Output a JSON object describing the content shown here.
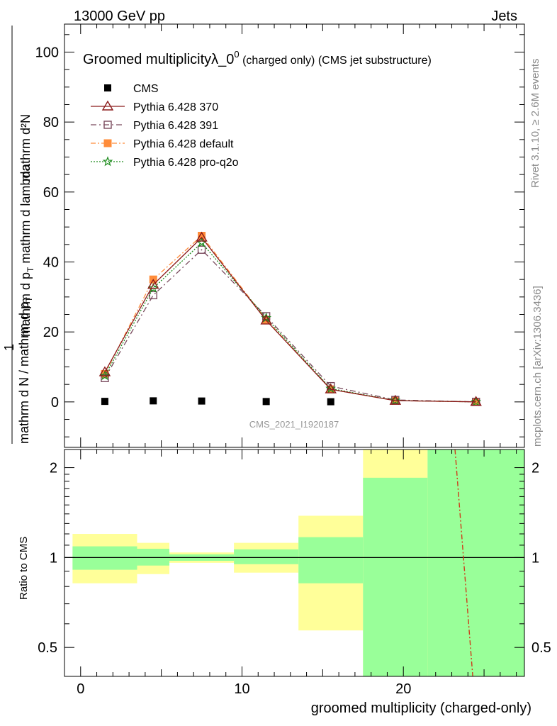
{
  "header": {
    "energy": "13000 GeV pp",
    "category": "Jets"
  },
  "side_labels": {
    "rivet": "Rivet 3.1.10, ≥ 2.6M events",
    "mcplots": "mcplots.cern.ch [arXiv:1306.3436]"
  },
  "chart_data": [
    {
      "type": "line",
      "title": "Groomed multiplicityλ_0",
      "title_sup": "0",
      "title_suffix": " (charged only) (CMS jet substructure)",
      "watermark": "CMS_2021_I1920187",
      "ylabel_numer": "mathrm d²N",
      "ylabel_line1": "1",
      "ylabel_denom": "mathrm d N / mathrm d p",
      "ylabel_denom_sub": "T",
      "ylabel_tail": "mathrm d p",
      "ylabel_tail_sub": "T",
      "ylabel_tail2": " mathrm d lambda",
      "ylim": [
        -13,
        108
      ],
      "yticks": [
        0,
        20,
        40,
        60,
        80,
        100
      ],
      "x": [
        1.5,
        4.5,
        7.5,
        11.5,
        15.5,
        19.5,
        24.5
      ],
      "xlim": [
        -1,
        27.5
      ],
      "legend_position": "top-left",
      "series": [
        {
          "name": "CMS",
          "style": "data",
          "color": "#000000",
          "points": [
            [
              1.5,
              0.15
            ],
            [
              4.5,
              0.3
            ],
            [
              7.5,
              0.25
            ],
            [
              11.5,
              0.1
            ],
            [
              15.5,
              0.05
            ]
          ]
        },
        {
          "name": "Pythia 6.428 370",
          "style": "solid",
          "color": "#8b1a1a",
          "marker": "triangle",
          "points": [
            [
              1.5,
              8.5
            ],
            [
              4.5,
              33.5
            ],
            [
              7.5,
              47.0
            ],
            [
              11.5,
              23.3
            ],
            [
              15.5,
              3.6
            ],
            [
              19.5,
              0.35
            ],
            [
              24.5,
              0.02
            ]
          ]
        },
        {
          "name": "Pythia 6.428 391",
          "style": "dashdot",
          "color": "#7a4b5e",
          "marker": "square-open",
          "points": [
            [
              1.5,
              6.8
            ],
            [
              4.5,
              30.5
            ],
            [
              7.5,
              43.5
            ],
            [
              11.5,
              24.5
            ],
            [
              15.5,
              4.5
            ],
            [
              19.5,
              0.55
            ],
            [
              24.5,
              0.02
            ]
          ]
        },
        {
          "name": "Pythia 6.428 default",
          "style": "dashdot-orange",
          "color": "#ff8c3a",
          "marker": "square-filled",
          "points": [
            [
              1.5,
              8.0
            ],
            [
              4.5,
              35.0
            ],
            [
              7.5,
              47.5
            ],
            [
              11.5,
              23.5
            ],
            [
              15.5,
              3.6
            ],
            [
              19.5,
              0.35
            ],
            [
              24.5,
              0.02
            ]
          ]
        },
        {
          "name": "Pythia 6.428 pro-q2o",
          "style": "dotted",
          "color": "#1e8c1e",
          "marker": "star",
          "points": [
            [
              1.5,
              7.5
            ],
            [
              4.5,
              32.5
            ],
            [
              7.5,
              45.5
            ],
            [
              11.5,
              24.0
            ],
            [
              15.5,
              3.8
            ],
            [
              19.5,
              0.4
            ],
            [
              24.5,
              0.02
            ]
          ]
        }
      ]
    },
    {
      "type": "area",
      "ylabel": "Ratio to CMS",
      "xlabel": "groomed multiplicity (charged-only)",
      "scale": "log",
      "ylim": [
        0.4,
        2.3
      ],
      "yticks": [
        0.5,
        1,
        2
      ],
      "ytick_labels": [
        "0.5",
        "1",
        "2"
      ],
      "xticks": [
        0,
        10,
        20
      ],
      "bins": [
        {
          "lo": -0.5,
          "hi": 3.5,
          "stat": [
            0.91,
            1.09
          ],
          "tot": [
            0.82,
            1.2
          ]
        },
        {
          "lo": 3.5,
          "hi": 5.5,
          "stat": [
            0.94,
            1.07
          ],
          "tot": [
            0.88,
            1.12
          ]
        },
        {
          "lo": 5.5,
          "hi": 9.5,
          "stat": [
            0.975,
            1.025
          ],
          "tot": [
            0.96,
            1.04
          ]
        },
        {
          "lo": 9.5,
          "hi": 13.5,
          "stat": [
            0.95,
            1.065
          ],
          "tot": [
            0.89,
            1.12
          ]
        },
        {
          "lo": 13.5,
          "hi": 17.5,
          "stat": [
            0.82,
            1.17
          ],
          "tot": [
            0.57,
            1.38
          ]
        },
        {
          "lo": 17.5,
          "hi": 21.5,
          "stat": [
            0.3,
            1.85
          ],
          "tot": [
            0.3,
            3.0
          ]
        },
        {
          "lo": 21.5,
          "hi": 27.5,
          "stat": [
            0.3,
            3.0
          ],
          "tot": [
            0.3,
            3.0
          ]
        }
      ],
      "ratio_line": {
        "name": "Pythia 6.428 default",
        "color": "#d03a1a",
        "points": [
          [
            23.2,
            2.4
          ],
          [
            24.3,
            0.38
          ]
        ]
      }
    }
  ],
  "colors": {
    "stat_band": "#99ff99",
    "tot_band": "#ffff99"
  }
}
